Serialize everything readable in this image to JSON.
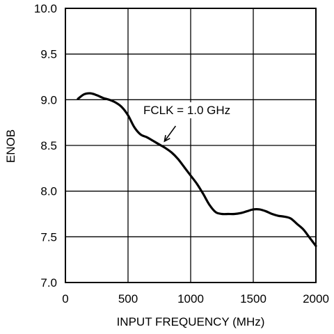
{
  "chart_data": {
    "type": "line",
    "title": "",
    "xlabel": "INPUT FREQUENCY (MHz)",
    "ylabel": "ENOB",
    "xlim": [
      0,
      2000
    ],
    "ylim": [
      7.0,
      10.0
    ],
    "x_ticks": [
      0,
      500,
      1000,
      1500,
      2000
    ],
    "x_tick_labels": [
      "0",
      "500",
      "1000",
      "1500",
      "2000"
    ],
    "y_ticks": [
      7.0,
      7.5,
      8.0,
      8.5,
      9.0,
      9.5,
      10.0
    ],
    "y_tick_labels": [
      "7.0",
      "7.5",
      "8.0",
      "8.5",
      "9.0",
      "9.5",
      "10.0"
    ],
    "grid": true,
    "series": [
      {
        "x": [
          100,
          150,
          200,
          250,
          300,
          350,
          400,
          450,
          500,
          550,
          600,
          650,
          700,
          750,
          800,
          850,
          900,
          950,
          1000,
          1050,
          1100,
          1150,
          1200,
          1250,
          1300,
          1350,
          1400,
          1450,
          1500,
          1550,
          1600,
          1650,
          1700,
          1750,
          1800,
          1850,
          1900,
          1950,
          2000
        ],
        "y": [
          9.01,
          9.06,
          9.07,
          9.05,
          9.02,
          9.0,
          8.97,
          8.92,
          8.83,
          8.7,
          8.62,
          8.59,
          8.55,
          8.51,
          8.47,
          8.42,
          8.35,
          8.26,
          8.17,
          8.08,
          7.97,
          7.85,
          7.77,
          7.75,
          7.75,
          7.75,
          7.76,
          7.78,
          7.8,
          7.8,
          7.78,
          7.75,
          7.73,
          7.72,
          7.7,
          7.64,
          7.58,
          7.49,
          7.4
        ],
        "color": "#000000"
      }
    ],
    "annotations": [
      {
        "text": "FCLK = 1.0 GHz",
        "arrow_to": [
          780,
          8.53
        ]
      }
    ]
  }
}
